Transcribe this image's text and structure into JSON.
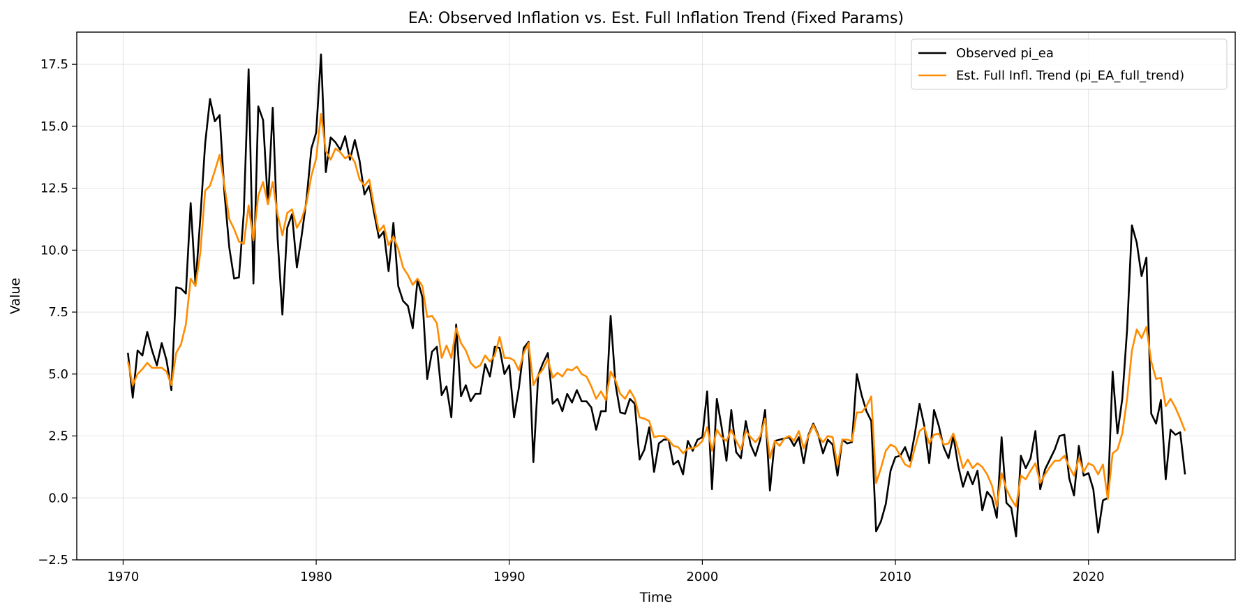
{
  "chart_data": {
    "type": "line",
    "title": "EA: Observed Inflation vs. Est. Full Inflation Trend (Fixed Params)",
    "xlabel": "Time",
    "ylabel": "Value",
    "xlim": [
      1967.6,
      2027.6
    ],
    "ylim": [
      -2.5,
      18.8
    ],
    "x_ticks": [
      1970,
      1980,
      1990,
      2000,
      2010,
      2020
    ],
    "y_ticks": [
      -2.5,
      0.0,
      2.5,
      5.0,
      7.5,
      10.0,
      12.5,
      15.0,
      17.5
    ],
    "y_tick_labels": [
      "−2.5",
      "0.0",
      "2.5",
      "5.0",
      "7.5",
      "10.0",
      "12.5",
      "15.0",
      "17.5"
    ],
    "grid": true,
    "legend_position": "top-right",
    "x_start": 1970.25,
    "x_step": 0.25,
    "series": [
      {
        "name": "Observed pi_ea",
        "color": "#000000",
        "values": [
          5.85,
          4.05,
          5.95,
          5.75,
          6.7,
          5.95,
          5.35,
          6.25,
          5.55,
          4.35,
          8.5,
          8.45,
          8.25,
          11.9,
          8.6,
          11.3,
          14.3,
          16.1,
          15.2,
          15.45,
          12.3,
          10.1,
          8.85,
          8.9,
          11.5,
          17.3,
          8.65,
          15.8,
          15.25,
          11.85,
          15.75,
          10.5,
          7.4,
          10.9,
          11.45,
          9.3,
          10.6,
          12.05,
          14.1,
          14.75,
          17.9,
          13.15,
          14.55,
          14.35,
          14.05,
          14.6,
          13.65,
          14.45,
          13.6,
          12.25,
          12.6,
          11.5,
          10.5,
          10.75,
          9.15,
          11.1,
          8.55,
          7.95,
          7.75,
          6.85,
          8.8,
          8.1,
          4.8,
          5.9,
          6.1,
          4.15,
          4.5,
          3.25,
          7.0,
          4.1,
          4.55,
          3.9,
          4.2,
          4.2,
          5.4,
          4.9,
          6.1,
          6.05,
          5.0,
          5.35,
          3.25,
          4.45,
          6.05,
          6.3,
          1.45,
          4.95,
          5.45,
          5.85,
          3.8,
          4.0,
          3.5,
          4.2,
          3.85,
          4.35,
          3.9,
          3.9,
          3.65,
          2.75,
          3.5,
          3.5,
          7.35,
          4.6,
          3.45,
          3.4,
          4.0,
          3.8,
          1.55,
          1.95,
          2.85,
          1.05,
          2.2,
          2.35,
          2.35,
          1.35,
          1.5,
          0.95,
          2.3,
          1.9,
          2.35,
          2.45,
          4.3,
          0.35,
          4.0,
          2.85,
          1.5,
          3.55,
          1.85,
          1.6,
          3.1,
          2.15,
          1.7,
          2.35,
          3.55,
          0.3,
          2.3,
          2.35,
          2.4,
          2.45,
          2.1,
          2.45,
          1.4,
          2.55,
          3.0,
          2.55,
          1.8,
          2.35,
          2.15,
          0.9,
          2.35,
          2.2,
          2.25,
          5.0,
          4.15,
          3.5,
          3.1,
          -1.35,
          -0.95,
          -0.25,
          1.1,
          1.65,
          1.7,
          2.05,
          1.5,
          2.55,
          3.8,
          2.9,
          1.4,
          3.55,
          2.9,
          2.05,
          1.6,
          2.5,
          1.3,
          0.45,
          1.05,
          0.55,
          1.1,
          -0.5,
          0.25,
          0.0,
          -0.8,
          2.45,
          -0.2,
          -0.4,
          -1.55,
          1.7,
          1.2,
          1.6,
          2.7,
          0.35,
          1.15,
          1.55,
          1.95,
          2.5,
          2.55,
          0.8,
          0.1,
          2.1,
          0.9,
          1.0,
          0.35,
          -1.4,
          -0.1,
          0.0,
          5.1,
          2.6,
          4.0,
          6.8,
          11.0,
          10.3,
          8.95,
          9.7,
          3.4,
          3.0,
          3.95,
          0.75,
          2.75,
          2.55,
          2.65,
          0.95
        ]
      },
      {
        "name": "Est. Full Infl. Trend (pi_EA_full_trend)",
        "color": "#ff8c00",
        "values": [
          5.5,
          4.55,
          5.0,
          5.2,
          5.45,
          5.25,
          5.25,
          5.25,
          5.1,
          4.55,
          5.85,
          6.2,
          7.0,
          8.85,
          8.55,
          9.9,
          12.4,
          12.6,
          13.2,
          13.85,
          12.6,
          11.25,
          10.85,
          10.35,
          10.25,
          11.8,
          10.4,
          12.2,
          12.75,
          11.85,
          12.75,
          11.45,
          10.6,
          11.5,
          11.65,
          10.9,
          11.25,
          11.9,
          13.0,
          13.7,
          15.5,
          14.0,
          13.65,
          14.1,
          13.95,
          13.7,
          13.85,
          13.55,
          12.85,
          12.6,
          12.85,
          11.75,
          10.75,
          11.0,
          10.2,
          10.55,
          10.05,
          9.3,
          9.0,
          8.6,
          8.85,
          8.55,
          7.3,
          7.35,
          7.05,
          5.65,
          6.15,
          5.65,
          6.85,
          6.25,
          5.95,
          5.45,
          5.25,
          5.35,
          5.75,
          5.5,
          5.75,
          6.5,
          5.65,
          5.65,
          5.55,
          5.15,
          5.85,
          6.25,
          4.55,
          4.95,
          5.2,
          5.6,
          4.85,
          5.05,
          4.9,
          5.2,
          5.15,
          5.3,
          5.0,
          4.9,
          4.5,
          4.0,
          4.3,
          3.95,
          5.1,
          4.75,
          4.2,
          4.0,
          4.35,
          4.0,
          3.25,
          3.2,
          3.1,
          2.45,
          2.5,
          2.5,
          2.35,
          2.1,
          2.05,
          1.8,
          2.0,
          2.0,
          2.1,
          2.3,
          2.85,
          1.9,
          2.75,
          2.45,
          2.3,
          2.75,
          2.3,
          1.95,
          2.7,
          2.45,
          2.25,
          2.5,
          3.2,
          1.6,
          2.3,
          2.1,
          2.4,
          2.5,
          2.3,
          2.7,
          2.0,
          2.5,
          2.95,
          2.5,
          2.25,
          2.5,
          2.45,
          1.3,
          2.35,
          2.35,
          2.3,
          3.45,
          3.45,
          3.7,
          4.1,
          0.6,
          1.2,
          1.9,
          2.15,
          2.05,
          1.7,
          1.35,
          1.25,
          2.0,
          2.7,
          2.85,
          2.2,
          2.55,
          2.6,
          2.15,
          2.2,
          2.6,
          1.95,
          1.2,
          1.55,
          1.2,
          1.4,
          1.25,
          0.95,
          0.5,
          -0.35,
          1.0,
          0.35,
          -0.05,
          -0.35,
          0.9,
          0.75,
          1.1,
          1.4,
          0.6,
          0.95,
          1.25,
          1.5,
          1.5,
          1.7,
          1.25,
          0.9,
          1.6,
          1.05,
          1.4,
          1.3,
          0.95,
          1.35,
          -0.05,
          1.8,
          1.95,
          2.6,
          4.0,
          5.95,
          6.8,
          6.45,
          6.9,
          5.5,
          4.8,
          4.85,
          3.7,
          4.0,
          3.65,
          3.2,
          2.7
        ]
      }
    ]
  }
}
